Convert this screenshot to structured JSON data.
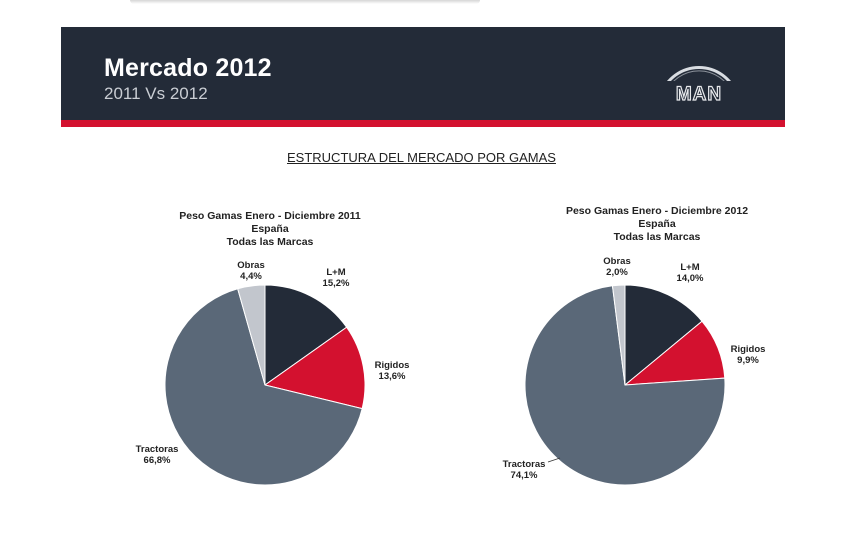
{
  "header": {
    "title": "Mercado 2012",
    "subtitle": "2011 Vs 2012",
    "logo_text": "MAN"
  },
  "section_title": "ESTRUCTURA DEL MERCADO POR GAMAS",
  "colors": {
    "header_bg": "#232b38",
    "accent_red": "#d3112f",
    "lm": "#232b38",
    "rigidos": "#d3112f",
    "tractoras": "#5a6878",
    "obras": "#c2c6cd"
  },
  "chart_data": [
    {
      "type": "pie",
      "title": [
        "Peso Gamas Enero - Diciembre 2011",
        "España",
        "Todas las Marcas"
      ],
      "slices": [
        {
          "name": "L+M",
          "value": 15.2,
          "value_label": "15,2%",
          "color": "#232b38"
        },
        {
          "name": "Rigidos",
          "value": 13.6,
          "value_label": "13,6%",
          "color": "#d3112f"
        },
        {
          "name": "Tractoras",
          "value": 66.8,
          "value_label": "66,8%",
          "color": "#5a6878"
        },
        {
          "name": "Obras",
          "value": 4.4,
          "value_label": "4,4%",
          "color": "#c2c6cd"
        }
      ]
    },
    {
      "type": "pie",
      "title": [
        "Peso Gamas Enero - Diciembre 2012",
        "España",
        "Todas las Marcas"
      ],
      "slices": [
        {
          "name": "L+M",
          "value": 14.0,
          "value_label": "14,0%",
          "color": "#232b38"
        },
        {
          "name": "Rigidos",
          "value": 9.9,
          "value_label": "9,9%",
          "color": "#d3112f"
        },
        {
          "name": "Tractoras",
          "value": 74.1,
          "value_label": "74,1%",
          "color": "#5a6878"
        },
        {
          "name": "Obras",
          "value": 2.0,
          "value_label": "2,0%",
          "color": "#c2c6cd"
        }
      ]
    }
  ]
}
